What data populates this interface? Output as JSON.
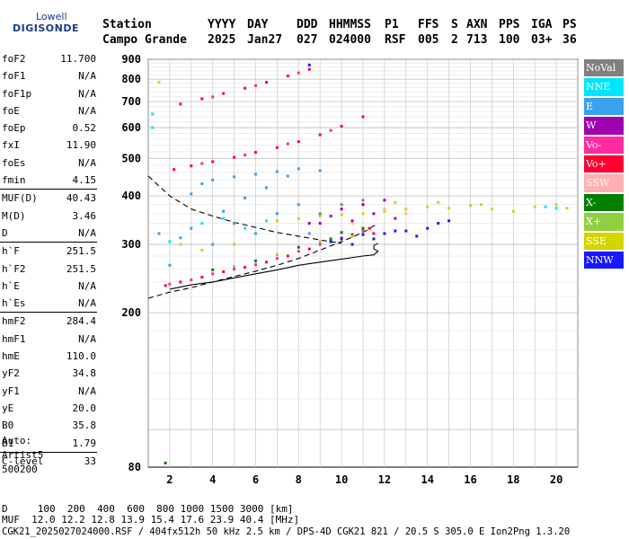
{
  "logo": {
    "line1": "Lowell",
    "line2": "DIGISONDE"
  },
  "header": {
    "labels": [
      "Station",
      "YYYY",
      "DAY",
      "DDD",
      "HHMMSS",
      "P1",
      "FFS",
      "S",
      "AXN",
      "PPS",
      "IGA",
      "PS"
    ],
    "values": [
      "Campo Grande",
      "2025",
      "Jan27",
      "027",
      "024000",
      "RSF",
      "005",
      "2",
      "713",
      "100",
      "03+",
      "36"
    ]
  },
  "params": {
    "group1": [
      {
        "name": "foF2",
        "value": "11.700"
      },
      {
        "name": "foF1",
        "value": "N/A"
      },
      {
        "name": "foF1p",
        "value": "N/A"
      },
      {
        "name": "foE",
        "value": "N/A"
      },
      {
        "name": "foEp",
        "value": "0.52"
      },
      {
        "name": "fxI",
        "value": "11.90"
      },
      {
        "name": "foEs",
        "value": "N/A"
      },
      {
        "name": "fmin",
        "value": "4.15"
      }
    ],
    "group2": [
      {
        "name": "MUF(D)",
        "value": "40.43"
      },
      {
        "name": "M(D)",
        "value": "3.46"
      },
      {
        "name": "D",
        "value": "N/A"
      }
    ],
    "group3": [
      {
        "name": "h`F",
        "value": "251.5"
      },
      {
        "name": "h`F2",
        "value": "251.5"
      },
      {
        "name": "h`E",
        "value": "N/A"
      },
      {
        "name": "h`Es",
        "value": "N/A"
      }
    ],
    "group4": [
      {
        "name": "hmF2",
        "value": "284.4"
      },
      {
        "name": "hmF1",
        "value": "N/A"
      },
      {
        "name": "hmE",
        "value": "110.0"
      },
      {
        "name": "yF2",
        "value": "34.8"
      },
      {
        "name": "yF1",
        "value": "N/A"
      },
      {
        "name": "yE",
        "value": "20.0"
      },
      {
        "name": "B0",
        "value": "35.8"
      },
      {
        "name": "B1",
        "value": "1.79"
      }
    ],
    "group5": [
      {
        "name": "C-level",
        "value": "33"
      }
    ]
  },
  "auto": {
    "line1": "Auto:",
    "line2": "Artist5",
    "line3": "500200"
  },
  "legend": [
    {
      "label": "NoVal",
      "color": "#808080"
    },
    {
      "label": "NNE",
      "color": "#00e5ff"
    },
    {
      "label": "E",
      "color": "#3aa0f0"
    },
    {
      "label": "W",
      "color": "#a000b0"
    },
    {
      "label": "Vo-",
      "color": "#ff2aa0"
    },
    {
      "label": "Vo+",
      "color": "#ff0030"
    },
    {
      "label": "SSW",
      "color": "#ffb0b0"
    },
    {
      "label": "X-",
      "color": "#008000"
    },
    {
      "label": "X+",
      "color": "#90d040"
    },
    {
      "label": "SSE",
      "color": "#d4d400"
    },
    {
      "label": "NNW",
      "color": "#1818ff"
    }
  ],
  "footer": {
    "dist_line": "D     100  200  400  600  800 1000 1500 3000 [km]",
    "muf_line": "MUF  12.0 12.2 12.8 13.9 15.4 17.6 23.9 40.4 [MHz]",
    "file_line": "CGK21_2025027024000.RSF / 404fx512h 50 kHz 2.5 km / DPS-4D CGK21 821 / 20.5 S 305.0 E Ion2Png 1.3.20"
  },
  "chart_data": {
    "type": "scatter",
    "title": "",
    "xlabel": "",
    "ylabel": "",
    "xlim": [
      1,
      21
    ],
    "ylim": [
      80,
      900
    ],
    "y_scale": "log",
    "x_ticks": [
      2,
      4,
      6,
      8,
      10,
      12,
      14,
      16,
      18,
      20
    ],
    "y_ticks": [
      80,
      200,
      300,
      400,
      500,
      600,
      700,
      800,
      900
    ],
    "grid": true,
    "legend_placement": "right",
    "series": [
      {
        "name": "Vo+",
        "color": "#ff0030",
        "points": [
          [
            1.8,
            235
          ],
          [
            2.5,
            240
          ],
          [
            3.5,
            247
          ],
          [
            4.5,
            255
          ],
          [
            5.5,
            262
          ],
          [
            6.5,
            270
          ],
          [
            7.5,
            280
          ],
          [
            8.5,
            292
          ],
          [
            9.5,
            305
          ],
          [
            10.5,
            318
          ],
          [
            11.3,
            330
          ],
          [
            2.2,
            468
          ],
          [
            3,
            478
          ],
          [
            4,
            490
          ],
          [
            5,
            503
          ],
          [
            6,
            518
          ],
          [
            7,
            533
          ],
          [
            8,
            552
          ],
          [
            9,
            575
          ],
          [
            10,
            605
          ],
          [
            11,
            640
          ],
          [
            2.5,
            690
          ],
          [
            3.5,
            712
          ],
          [
            4.5,
            735
          ],
          [
            5.5,
            758
          ],
          [
            6.5,
            785
          ],
          [
            7.5,
            815
          ],
          [
            8.5,
            848
          ],
          [
            11.5,
            320
          ]
        ]
      },
      {
        "name": "Vo-",
        "color": "#ff2aa0",
        "points": [
          [
            2,
            237
          ],
          [
            3,
            243
          ],
          [
            4,
            252
          ],
          [
            5,
            259
          ],
          [
            6,
            266
          ],
          [
            7,
            276
          ],
          [
            8,
            288
          ],
          [
            9,
            300
          ],
          [
            10,
            312
          ],
          [
            11,
            325
          ],
          [
            3.5,
            485
          ],
          [
            5.5,
            510
          ],
          [
            7.5,
            545
          ],
          [
            9.5,
            590
          ],
          [
            4,
            720
          ],
          [
            6,
            770
          ],
          [
            8,
            830
          ]
        ]
      },
      {
        "name": "E",
        "color": "#3aa0f0",
        "points": [
          [
            1.5,
            320
          ],
          [
            2.5,
            312
          ],
          [
            3,
            405
          ],
          [
            3.5,
            430
          ],
          [
            4,
            440
          ],
          [
            4.5,
            365
          ],
          [
            5,
            448
          ],
          [
            5.5,
            395
          ],
          [
            6,
            455
          ],
          [
            6.5,
            420
          ],
          [
            7,
            462
          ],
          [
            7.5,
            450
          ],
          [
            8,
            470
          ],
          [
            8.5,
            320
          ],
          [
            9,
            465
          ],
          [
            4,
            300
          ],
          [
            6,
            320
          ],
          [
            8,
            380
          ],
          [
            2,
            265
          ],
          [
            3,
            330
          ],
          [
            5,
            340
          ],
          [
            7,
            360
          ]
        ]
      },
      {
        "name": "NNE",
        "color": "#00e5ff",
        "points": [
          [
            1.2,
            600
          ],
          [
            1.2,
            650
          ],
          [
            3.5,
            340
          ],
          [
            4.5,
            350
          ],
          [
            5.5,
            330
          ],
          [
            6.5,
            345
          ],
          [
            2,
            305
          ],
          [
            19.5,
            375
          ],
          [
            20,
            372
          ]
        ]
      },
      {
        "name": "SSE",
        "color": "#d4d400",
        "points": [
          [
            2.5,
            300
          ],
          [
            3.5,
            290
          ],
          [
            5,
            300
          ],
          [
            7,
            345
          ],
          [
            8,
            350
          ],
          [
            9,
            355
          ],
          [
            10,
            358
          ],
          [
            11,
            360
          ],
          [
            12,
            365
          ],
          [
            13,
            370
          ],
          [
            14,
            375
          ],
          [
            15,
            372
          ],
          [
            16,
            378
          ],
          [
            17,
            370
          ],
          [
            18,
            365
          ],
          [
            19,
            375
          ],
          [
            20,
            380
          ],
          [
            20.5,
            372
          ],
          [
            12.5,
            385
          ],
          [
            14.5,
            385
          ],
          [
            16.5,
            380
          ],
          [
            1.5,
            785
          ]
        ]
      },
      {
        "name": "W",
        "color": "#a000b0",
        "points": [
          [
            9,
            340
          ],
          [
            9.5,
            355
          ],
          [
            10,
            370
          ],
          [
            10.5,
            345
          ],
          [
            11,
            380
          ],
          [
            11.5,
            360
          ],
          [
            12,
            390
          ],
          [
            12.5,
            350
          ],
          [
            8.5,
            340
          ]
        ]
      },
      {
        "name": "NNW",
        "color": "#1818ff",
        "points": [
          [
            9.5,
            305
          ],
          [
            10,
            310
          ],
          [
            10.5,
            300
          ],
          [
            11,
            318
          ],
          [
            11.5,
            310
          ],
          [
            12,
            320
          ],
          [
            12.5,
            325
          ],
          [
            13,
            325
          ],
          [
            13.5,
            315
          ],
          [
            14,
            330
          ],
          [
            14.5,
            340
          ],
          [
            15,
            345
          ],
          [
            8.5,
            870
          ]
        ]
      },
      {
        "name": "X-",
        "color": "#008000",
        "points": [
          [
            4,
            258
          ],
          [
            6,
            272
          ],
          [
            8,
            295
          ],
          [
            1.8,
            82
          ],
          [
            9.5,
            310
          ],
          [
            10,
            322
          ],
          [
            11,
            330
          ]
        ]
      },
      {
        "name": "X+",
        "color": "#90d040",
        "points": [
          [
            5,
            263
          ],
          [
            7,
            282
          ],
          [
            9,
            305
          ],
          [
            10.5,
            315
          ]
        ]
      },
      {
        "name": "SSW",
        "color": "#ffb0b0",
        "points": [
          [
            10.5,
            340
          ],
          [
            12,
            370
          ],
          [
            13,
            360
          ]
        ]
      },
      {
        "name": "NoVal",
        "color": "#808080",
        "points": [
          [
            9,
            360
          ],
          [
            10,
            380
          ],
          [
            11,
            390
          ]
        ]
      }
    ],
    "traces": [
      {
        "style": "dashed",
        "color": "#000000",
        "points": [
          [
            1,
            450
          ],
          [
            2,
            400
          ],
          [
            3,
            370
          ],
          [
            4,
            355
          ],
          [
            5,
            342
          ],
          [
            6,
            332
          ],
          [
            7,
            322
          ],
          [
            8,
            315
          ],
          [
            9,
            308
          ],
          [
            10,
            302
          ]
        ]
      },
      {
        "style": "dashed",
        "color": "#000000",
        "points": [
          [
            1,
            218
          ],
          [
            2,
            226
          ],
          [
            3,
            232
          ],
          [
            4,
            240
          ],
          [
            5,
            248
          ],
          [
            6,
            256
          ],
          [
            7,
            265
          ],
          [
            8,
            276
          ],
          [
            9,
            290
          ],
          [
            10,
            305
          ],
          [
            11,
            322
          ],
          [
            11.7,
            340
          ]
        ]
      },
      {
        "style": "solid",
        "color": "#000000",
        "points": [
          [
            2,
            230
          ],
          [
            3,
            236
          ],
          [
            4,
            240
          ],
          [
            5,
            246
          ],
          [
            6,
            252
          ],
          [
            7,
            258
          ],
          [
            8,
            265
          ],
          [
            9,
            270
          ],
          [
            10,
            275
          ],
          [
            11,
            280
          ],
          [
            11.5,
            282
          ],
          [
            11.7,
            288
          ],
          [
            11.5,
            292
          ],
          [
            11.5,
            298
          ],
          [
            11.7,
            302
          ]
        ]
      }
    ]
  }
}
